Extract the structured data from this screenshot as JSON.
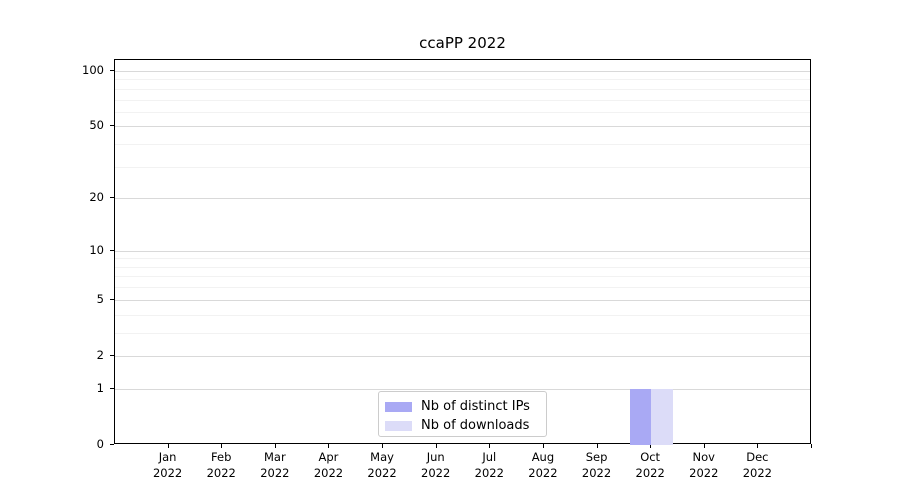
{
  "title": "ccaPP 2022",
  "colors": {
    "ips": "#a9a9f4",
    "downloads": "#dcdcf8",
    "grid_major": "#d9d9d9",
    "grid_minor": "#f2f2f2",
    "axis": "#000000",
    "legend_border": "#cccccc",
    "background": "#ffffff"
  },
  "legend": {
    "items": [
      {
        "label": "Nb of distinct IPs",
        "color": "#a9a9f4"
      },
      {
        "label": "Nb of downloads",
        "color": "#dcdcf8"
      }
    ]
  },
  "chart_data": {
    "type": "bar",
    "title": "ccaPP 2022",
    "categories": [
      "Jan 2022",
      "Feb 2022",
      "Mar 2022",
      "Apr 2022",
      "May 2022",
      "Jun 2022",
      "Jul 2022",
      "Aug 2022",
      "Sep 2022",
      "Oct 2022",
      "Nov 2022",
      "Dec 2022"
    ],
    "series": [
      {
        "name": "Nb of distinct IPs",
        "color": "#a9a9f4",
        "values": [
          0,
          0,
          0,
          0,
          0,
          0,
          0,
          0,
          0,
          1,
          0,
          0
        ]
      },
      {
        "name": "Nb of downloads",
        "color": "#dcdcf8",
        "values": [
          0,
          0,
          0,
          0,
          0,
          0,
          0,
          0,
          0,
          1,
          0,
          0
        ]
      }
    ],
    "xlabel": "",
    "ylabel": "",
    "yscale": "log1p",
    "y_ticks": [
      0,
      1,
      2,
      5,
      10,
      20,
      50,
      100
    ],
    "y_minor_ticks": [
      3,
      4,
      6,
      7,
      8,
      9,
      30,
      40,
      60,
      70,
      80,
      90
    ],
    "ylim": [
      0,
      115
    ],
    "grid": "horizontal-only",
    "legend_position": "inside-bottom-center"
  }
}
